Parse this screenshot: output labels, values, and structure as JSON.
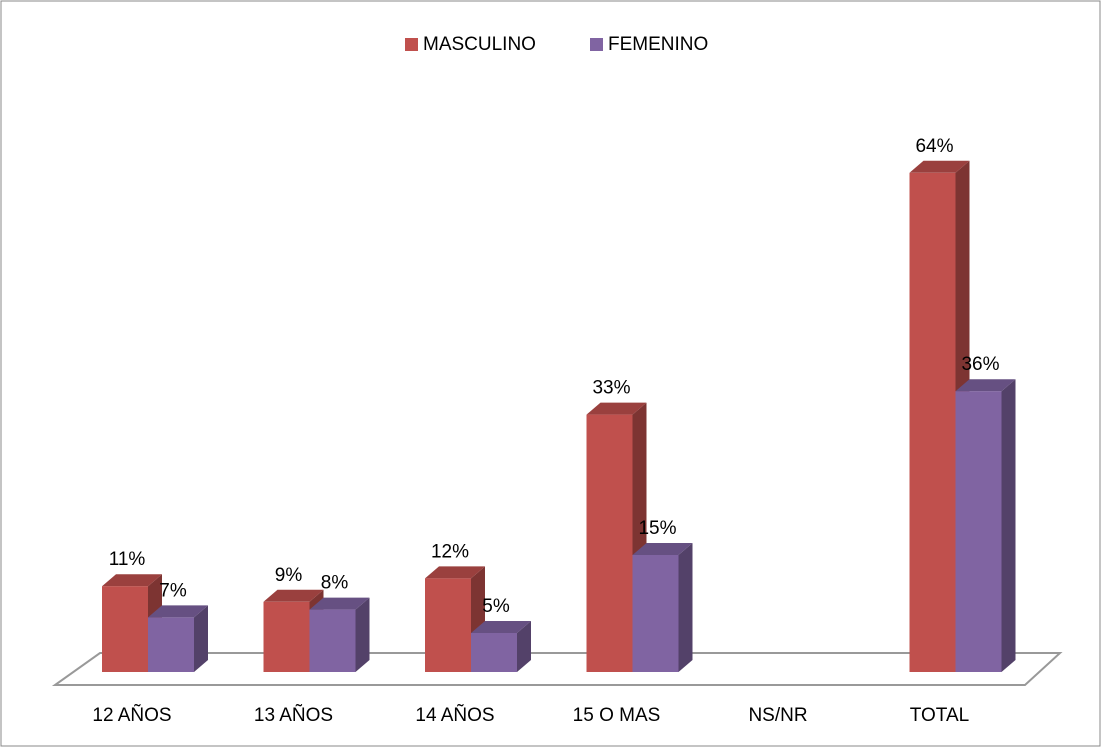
{
  "chart_data": {
    "type": "bar3d",
    "categories": [
      "12 AÑOS",
      "13 AÑOS",
      "14 AÑOS",
      "15 O MAS",
      "NS/NR",
      "TOTAL"
    ],
    "series": [
      {
        "name": "MASCULINO",
        "color": "#c0504d",
        "values": [
          11,
          9,
          12,
          33,
          null,
          64
        ],
        "value_labels": [
          "11%",
          "9%",
          "12%",
          "33%",
          null,
          "64%"
        ]
      },
      {
        "name": "FEMENINO",
        "color": "#8064a2",
        "values": [
          7,
          8,
          5,
          15,
          null,
          36
        ],
        "value_labels": [
          "7%",
          "8%",
          "5%",
          "15%",
          null,
          "36%"
        ]
      }
    ],
    "legend": "top"
  }
}
